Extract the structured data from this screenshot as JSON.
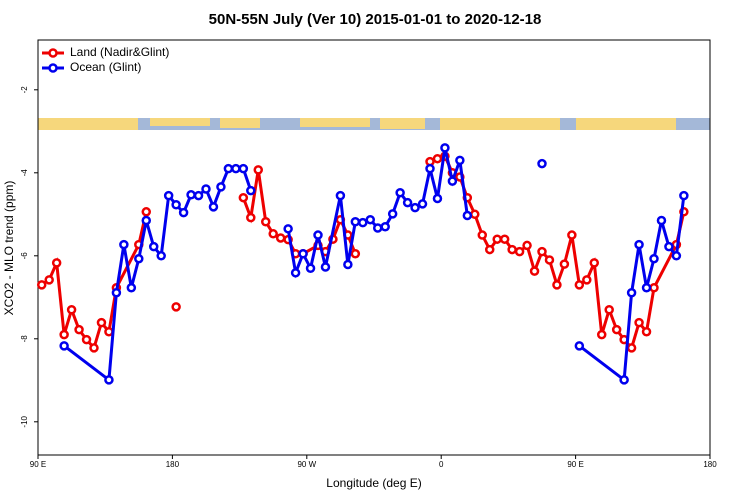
{
  "chart_data": {
    "type": "line",
    "title": "50N-55N July (Ver 10)   2015-01-01 to 2020-12-18",
    "x_label": "Longitude (deg E)",
    "y_label": "XCO2 - MLO trend (ppm)",
    "xlim": [
      90,
      540
    ],
    "ylim": [
      -10.8,
      -0.8
    ],
    "xticks": [
      {
        "value": 90,
        "label": "90 E"
      },
      {
        "value": 180,
        "label": "180"
      },
      {
        "value": 270,
        "label": "90 W"
      },
      {
        "value": 360,
        "label": "0"
      },
      {
        "value": 450,
        "label": "90 E"
      },
      {
        "value": 540,
        "label": "180"
      }
    ],
    "yticks": [
      -2,
      -4,
      -6,
      -8,
      -10
    ],
    "legend": "top-left",
    "series": [
      {
        "name": "Land (Nadir&Glint)",
        "color": "#ee0000",
        "x": [
          92.5,
          97.5,
          102.5,
          107.5,
          112.5,
          117.5,
          122.5,
          127.5,
          132.5,
          137.5,
          142.5,
          157.5,
          162.5,
          null,
          182.5,
          null,
          227.5,
          232.5,
          237.5,
          242.5,
          247.5,
          252.5,
          257.5,
          262.5,
          267.5,
          277.5,
          282.5,
          287.5,
          292.5,
          297.5,
          302.5,
          null,
          352.5,
          357.5,
          362.5,
          367.5,
          372.5,
          377.5,
          382.5,
          387.5,
          392.5,
          397.5,
          402.5,
          407.5,
          412.5,
          417.5,
          422.5,
          427.5,
          432.5,
          437.5,
          442.5,
          447.5,
          452.5,
          457.5,
          462.5,
          467.5,
          472.5,
          477.5,
          482.5,
          487.5,
          492.5,
          497.5,
          502.5,
          517.5,
          522.5
        ],
        "values": [
          -6.7,
          -6.58,
          -6.17,
          -7.9,
          -7.3,
          -7.78,
          -8.02,
          -8.22,
          -7.61,
          -7.83,
          -6.77,
          -5.73,
          -4.94,
          null,
          -7.23,
          null,
          -4.6,
          -5.08,
          -3.93,
          -5.18,
          -5.47,
          -5.57,
          -5.61,
          -5.95,
          -5.95,
          -5.75,
          -5.9,
          -5.6,
          -5.13,
          -5.5,
          -5.95,
          null,
          -3.73,
          -3.66,
          -3.6,
          -4.0,
          -4.1,
          -4.6,
          -5.0,
          -5.5,
          -5.85,
          -5.6,
          -5.6,
          -5.85,
          -5.9,
          -5.75,
          -6.37,
          -5.9,
          -6.1,
          -6.7,
          -6.2,
          -5.5,
          -6.7,
          -6.58,
          -6.17,
          -7.9,
          -7.3,
          -7.78,
          -8.02,
          -8.22,
          -7.61,
          -7.83,
          -6.77,
          -5.73,
          -4.94
        ]
      },
      {
        "name": "Ocean (Glint)",
        "color": "#0000ee",
        "x": [
          107.5,
          137.5,
          142.5,
          147.5,
          152.5,
          157.5,
          162.5,
          167.5,
          172.5,
          177.5,
          182.5,
          187.5,
          192.5,
          197.5,
          202.5,
          207.5,
          212.5,
          217.5,
          222.5,
          227.5,
          232.5,
          null,
          257.5,
          262.5,
          267.5,
          272.5,
          277.5,
          282.5,
          292.5,
          297.5,
          302.5,
          307.5,
          312.5,
          317.5,
          322.5,
          327.5,
          332.5,
          337.5,
          342.5,
          347.5,
          352.5,
          357.5,
          362.5,
          367.5,
          372.5,
          377.5,
          null,
          427.5,
          null,
          452.5,
          482.5,
          487.5,
          492.5,
          497.5,
          502.5,
          507.5,
          512.5,
          517.5,
          522.5
        ],
        "values": [
          -8.17,
          -8.99,
          -6.89,
          -5.73,
          -6.77,
          -6.07,
          -5.15,
          -5.78,
          -6.0,
          -4.55,
          -4.77,
          -4.96,
          -4.53,
          -4.55,
          -4.39,
          -4.82,
          -4.34,
          -3.9,
          -3.9,
          -3.9,
          -4.43,
          null,
          -5.35,
          -6.41,
          -5.95,
          -6.3,
          -5.5,
          -6.27,
          -4.55,
          -6.21,
          -5.18,
          -5.2,
          -5.13,
          -5.33,
          -5.3,
          -4.99,
          -4.48,
          -4.72,
          -4.84,
          -4.75,
          -3.9,
          -4.62,
          -3.4,
          -4.2,
          -3.7,
          -5.03,
          null,
          -3.78,
          null,
          -8.17,
          -8.99,
          -6.89,
          -5.73,
          -6.77,
          -6.07,
          -5.15,
          -5.78,
          -6.0,
          -4.55
        ]
      }
    ]
  }
}
